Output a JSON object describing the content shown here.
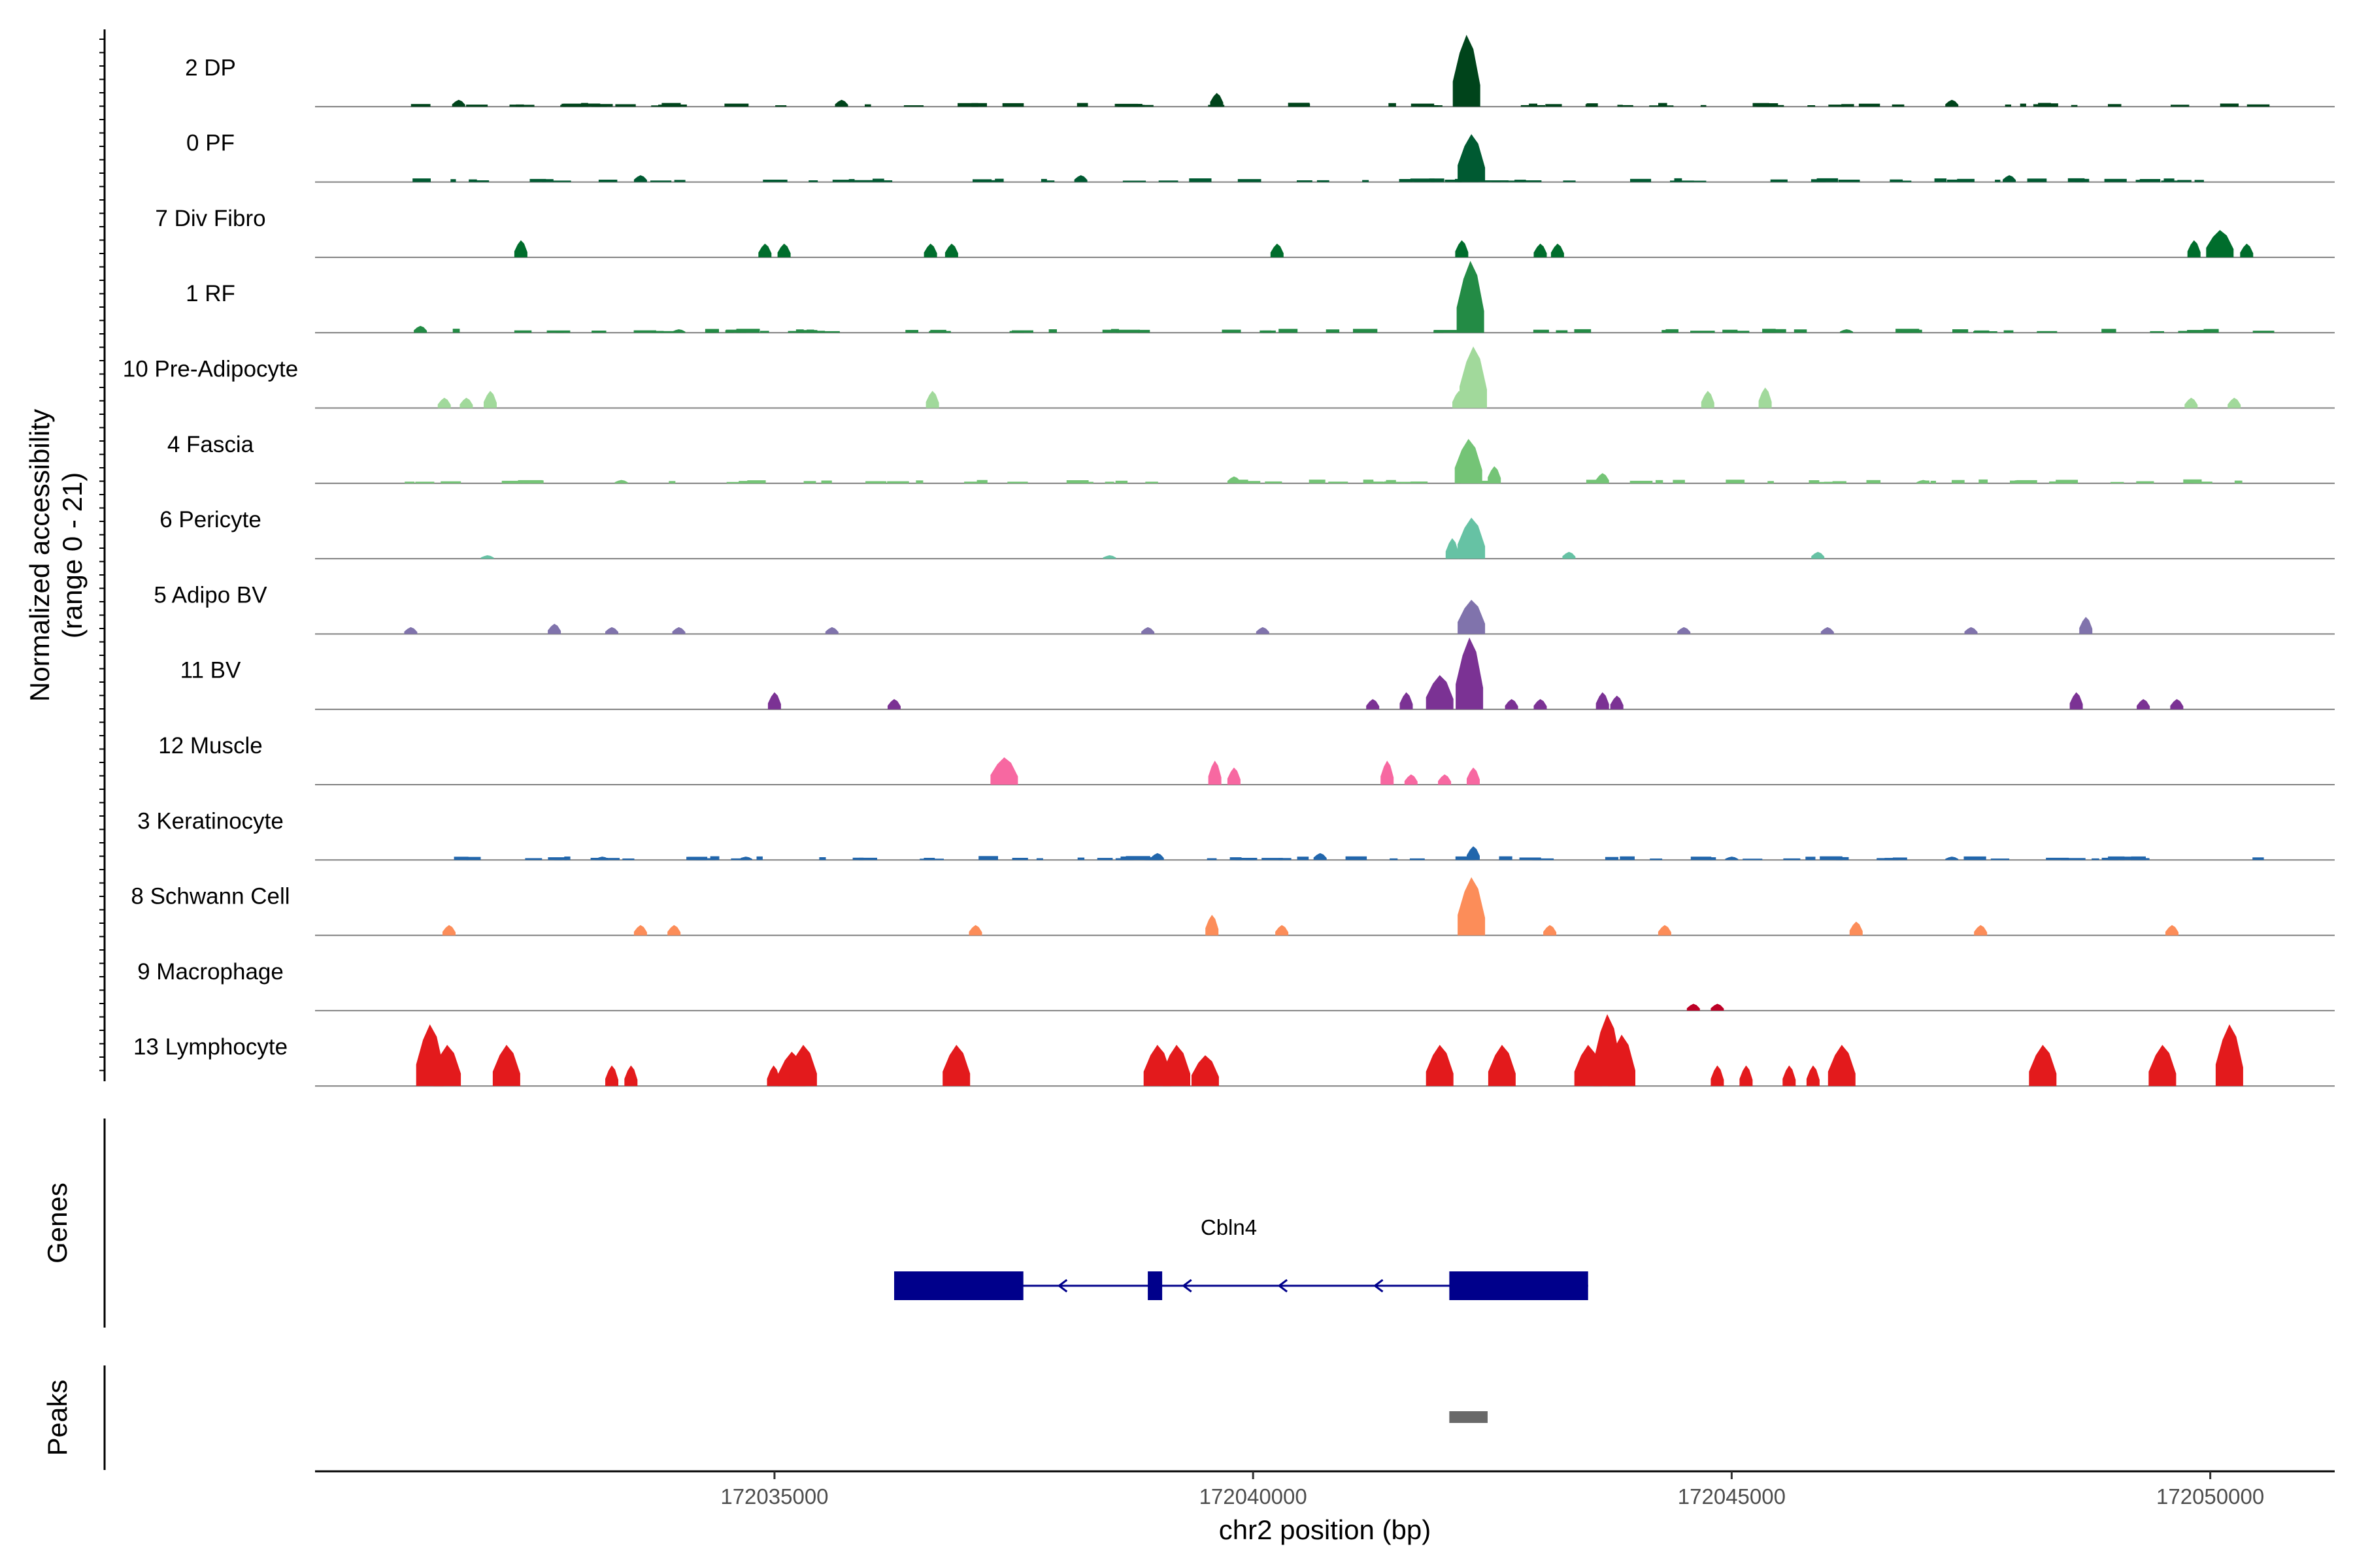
{
  "chart_data": {
    "type": "area",
    "title": "",
    "xlabel": "chr2 position (bp)",
    "ylabel": "Normalized accessibility\n(range 0 - 21)",
    "y_range": [
      0,
      21
    ],
    "xlim": [
      172030200,
      172051300
    ],
    "x_ticks": [
      172035000,
      172040000,
      172045000,
      172050000
    ],
    "x_tick_labels": [
      "172035000",
      "172040000",
      "172045000",
      "172050000"
    ],
    "tracks": [
      {
        "name": "2 DP",
        "color": "#00441b",
        "peaks": [
          [
            172042230,
            21
          ],
          [
            172039620,
            4
          ],
          [
            172031700,
            2
          ],
          [
            172035700,
            2
          ],
          [
            172047300,
            2
          ]
        ],
        "noise": 1
      },
      {
        "name": "0 PF",
        "color": "#005a32",
        "peaks": [
          [
            172042280,
            14
          ],
          [
            172038200,
            2
          ],
          [
            172033600,
            2
          ],
          [
            172047900,
            2
          ]
        ],
        "noise": 1
      },
      {
        "name": "7 Div Fibro",
        "color": "#006d2c",
        "peaks": [
          [
            172032350,
            5
          ],
          [
            172034900,
            4
          ],
          [
            172035100,
            4
          ],
          [
            172036630,
            4
          ],
          [
            172036850,
            4
          ],
          [
            172040250,
            4
          ],
          [
            172042180,
            5
          ],
          [
            172043000,
            4
          ],
          [
            172043180,
            4
          ],
          [
            172049830,
            5
          ],
          [
            172050100,
            8
          ],
          [
            172050380,
            4
          ]
        ],
        "noise": 0
      },
      {
        "name": "1 RF",
        "color": "#238b45",
        "peaks": [
          [
            172042270,
            21
          ],
          [
            172031300,
            2
          ],
          [
            172034000,
            1
          ],
          [
            172046200,
            1
          ]
        ],
        "noise": 1
      },
      {
        "name": "10 Pre-Adipocyte",
        "color": "#a1d99b",
        "peaks": [
          [
            172042300,
            18
          ],
          [
            172042150,
            5
          ],
          [
            172031550,
            3
          ],
          [
            172031780,
            3
          ],
          [
            172032030,
            5
          ],
          [
            172036650,
            5
          ],
          [
            172044750,
            5
          ],
          [
            172045350,
            6
          ],
          [
            172049800,
            3
          ],
          [
            172050250,
            3
          ]
        ],
        "noise": 0
      },
      {
        "name": "4 Fascia",
        "color": "#74c476",
        "peaks": [
          [
            172042250,
            13
          ],
          [
            172042520,
            5
          ],
          [
            172043650,
            3
          ],
          [
            172039800,
            2
          ],
          [
            172033400,
            1
          ],
          [
            172047000,
            1
          ]
        ],
        "noise": 1
      },
      {
        "name": "6 Pericyte",
        "color": "#66c2a4",
        "peaks": [
          [
            172042280,
            12
          ],
          [
            172042080,
            6
          ],
          [
            172043300,
            2
          ],
          [
            172045900,
            2
          ],
          [
            172038500,
            1
          ],
          [
            172032000,
            1
          ]
        ],
        "noise": 0
      },
      {
        "name": "5 Adipo BV",
        "color": "#8073ac",
        "peaks": [
          [
            172042280,
            10
          ],
          [
            172048700,
            5
          ],
          [
            172031200,
            2
          ],
          [
            172032700,
            3
          ],
          [
            172033300,
            2
          ],
          [
            172034000,
            2
          ],
          [
            172035600,
            2
          ],
          [
            172038900,
            2
          ],
          [
            172040100,
            2
          ],
          [
            172044500,
            2
          ],
          [
            172046000,
            2
          ],
          [
            172047500,
            2
          ]
        ],
        "noise": 0
      },
      {
        "name": "11 BV",
        "color": "#7b3294",
        "peaks": [
          [
            172042260,
            21
          ],
          [
            172041950,
            10
          ],
          [
            172041600,
            5
          ],
          [
            172041250,
            3
          ],
          [
            172043650,
            5
          ],
          [
            172043800,
            4
          ],
          [
            172043000,
            3
          ],
          [
            172042700,
            3
          ],
          [
            172035000,
            5
          ],
          [
            172036250,
            3
          ],
          [
            172048600,
            5
          ],
          [
            172049300,
            3
          ],
          [
            172049650,
            3
          ]
        ],
        "noise": 0
      },
      {
        "name": "12 Muscle",
        "color": "#f768a1",
        "peaks": [
          [
            172037400,
            8
          ],
          [
            172039600,
            7
          ],
          [
            172039800,
            5
          ],
          [
            172041400,
            7
          ],
          [
            172041650,
            3
          ],
          [
            172042000,
            3
          ],
          [
            172042300,
            5
          ]
        ],
        "noise": 0
      },
      {
        "name": "3 Keratinocyte",
        "color": "#2166ac",
        "peaks": [
          [
            172042300,
            4
          ],
          [
            172040700,
            2
          ],
          [
            172039000,
            2
          ],
          [
            172033200,
            1
          ],
          [
            172034700,
            1
          ],
          [
            172045000,
            1
          ],
          [
            172047300,
            1
          ]
        ],
        "noise": 1
      },
      {
        "name": "8 Schwann Cell",
        "color": "#fc8d59",
        "peaks": [
          [
            172042280,
            17
          ],
          [
            172039570,
            6
          ],
          [
            172040300,
            3
          ],
          [
            172033600,
            3
          ],
          [
            172033950,
            3
          ],
          [
            172037100,
            3
          ],
          [
            172043100,
            3
          ],
          [
            172046300,
            4
          ],
          [
            172047600,
            3
          ],
          [
            172049600,
            3
          ],
          [
            172031600,
            3
          ],
          [
            172044300,
            3
          ]
        ],
        "noise": 0
      },
      {
        "name": "9 Macrophage",
        "color": "#bd0026",
        "peaks": [
          [
            172044600,
            2
          ],
          [
            172044850,
            2
          ]
        ],
        "noise": 0
      },
      {
        "name": "13 Lymphocyte",
        "color": "#e31a1c",
        "peaks": [
          [
            172031400,
            18
          ],
          [
            172031580,
            12
          ],
          [
            172032200,
            12
          ],
          [
            172033300,
            6
          ],
          [
            172033500,
            6
          ],
          [
            172034990,
            6
          ],
          [
            172035180,
            10
          ],
          [
            172035300,
            12
          ],
          [
            172036900,
            12
          ],
          [
            172039000,
            12
          ],
          [
            172039200,
            12
          ],
          [
            172039500,
            9
          ],
          [
            172041950,
            12
          ],
          [
            172042600,
            12
          ],
          [
            172043500,
            12
          ],
          [
            172043700,
            21
          ],
          [
            172043850,
            15
          ],
          [
            172044850,
            6
          ],
          [
            172045150,
            6
          ],
          [
            172045600,
            6
          ],
          [
            172045850,
            6
          ],
          [
            172046150,
            12
          ],
          [
            172048250,
            12
          ],
          [
            172049500,
            12
          ],
          [
            172050200,
            18
          ]
        ],
        "noise": 0
      }
    ],
    "genes": [
      {
        "name": "Cbln4",
        "strand": "-",
        "start": 172036250,
        "end": 172043500,
        "exons": [
          [
            172036250,
            172037600
          ],
          [
            172038900,
            172039050
          ],
          [
            172042050,
            172043500
          ]
        ]
      }
    ],
    "peaks": [
      [
        172042050,
        172042450
      ]
    ],
    "gene_track_label": "Genes",
    "peak_track_label": "Peaks",
    "grid": false
  },
  "colors": {
    "gene": "#00008b",
    "peak": "#696969",
    "baseline": "#808080"
  }
}
